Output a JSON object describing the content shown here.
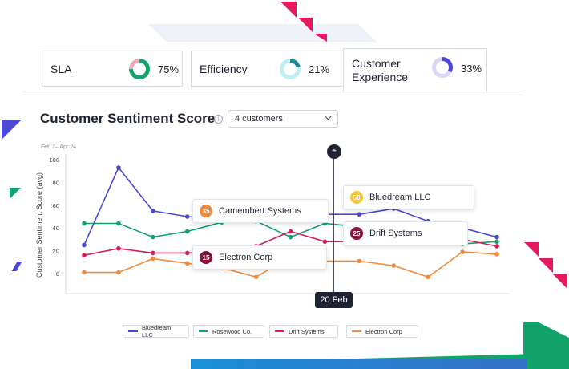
{
  "cards": [
    {
      "label": "SLA",
      "value": "75%",
      "ring_color": "#f2a8b3",
      "fill_color": "#11a36a",
      "fraction": 0.75
    },
    {
      "label": "Efficiency",
      "value": "21%",
      "ring_color": "#bdeef2",
      "fill_color": "#1a8a94",
      "fraction": 0.21
    },
    {
      "label": "Customer Experience",
      "value": "33%",
      "ring_color": "#d8d8f5",
      "fill_color": "#4b48d6",
      "fraction": 0.33
    }
  ],
  "header": {
    "title": "Customer Sentiment Score",
    "info_icon": "info-icon",
    "dropdown_value": "4 customers"
  },
  "tooltips": {
    "camembert": {
      "score": "35",
      "name": "Camembert Systems",
      "color": "#f28b3c"
    },
    "bluedream": {
      "score": "58",
      "name": "Bluedream LLC",
      "color": "#f6c53a"
    },
    "drift": {
      "score": "25",
      "name": "Drift Systems",
      "color": "#8a0f3a"
    },
    "electron": {
      "score": "15",
      "name": "Electron Corp",
      "color": "#8a0f3a"
    }
  },
  "cursor": {
    "date_label": "20 Feb",
    "pin_icon": "pin-icon"
  },
  "chart_data": {
    "type": "line",
    "date_range": "Feb 7– Apr 24",
    "ylabel": "Customer Sentiment Score (avg)",
    "ylim": [
      -10,
      100
    ],
    "yticks": [
      0,
      20,
      40,
      60,
      80,
      100
    ],
    "grid": false,
    "legend_placement": "bottom",
    "series": [
      {
        "name": "Bluedream LLC",
        "color": "#4b48d6",
        "values": [
          25,
          93,
          55,
          50,
          48,
          59,
          52,
          52,
          52,
          57,
          46,
          40,
          32
        ]
      },
      {
        "name": "Rosewood Co.",
        "color": "#11a36a",
        "values": [
          44,
          44,
          32,
          37,
          45,
          46,
          32,
          44,
          41,
          37,
          45,
          26,
          28
        ]
      },
      {
        "name": "Drift Systems",
        "color": "#d81b5c",
        "values": [
          16,
          22,
          18,
          18,
          19,
          24,
          37,
          28,
          28,
          31,
          37,
          30,
          24
        ]
      },
      {
        "name": "Electron Corp",
        "color": "#f28b3c",
        "values": [
          1,
          1,
          13,
          9,
          5,
          -3,
          15,
          11,
          11,
          7,
          -3,
          19,
          17
        ]
      }
    ]
  }
}
